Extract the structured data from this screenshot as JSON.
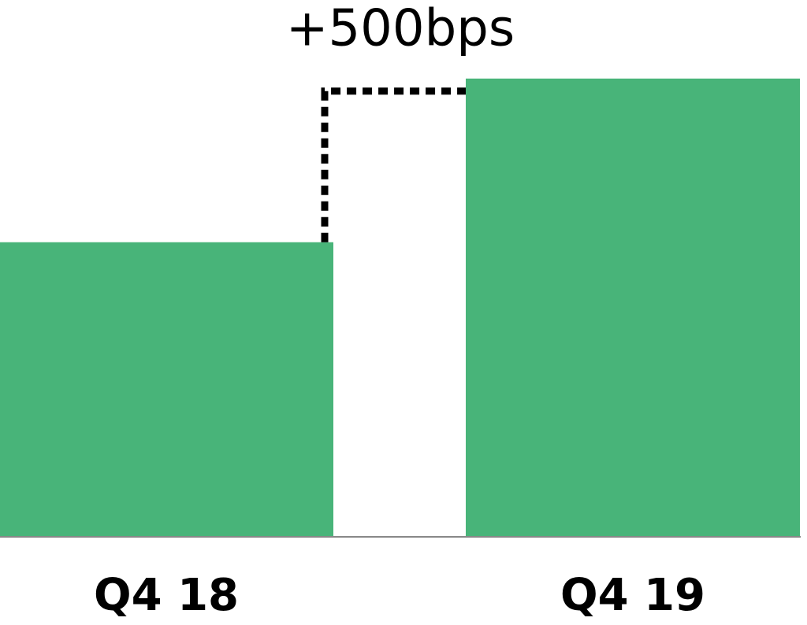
{
  "chart_data": {
    "type": "bar",
    "annotation": "+500bps",
    "categories": [
      "Q4 18",
      "Q4 19"
    ],
    "values": [
      9,
      14
    ],
    "color": "#48b479",
    "ylim": [
      0,
      16.4
    ]
  }
}
